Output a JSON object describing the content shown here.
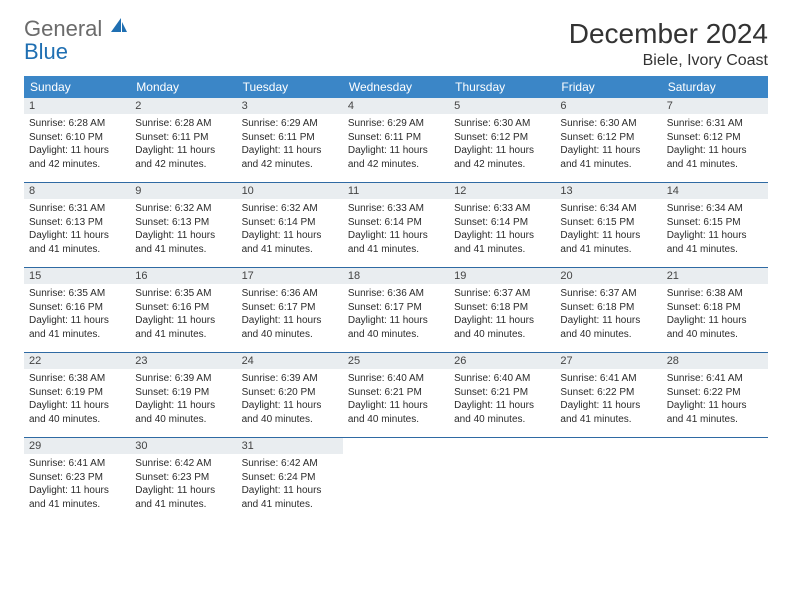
{
  "logo": {
    "word1": "General",
    "word2": "Blue"
  },
  "title": "December 2024",
  "location": "Biele, Ivory Coast",
  "colors": {
    "header_bg": "#3b86c7",
    "header_text": "#ffffff",
    "daynum_bg": "#e9edf0",
    "week_border": "#2f6aa3",
    "logo_gray": "#6b6b6b",
    "logo_blue": "#1f6fb2"
  },
  "weekdays": [
    "Sunday",
    "Monday",
    "Tuesday",
    "Wednesday",
    "Thursday",
    "Friday",
    "Saturday"
  ],
  "weeks": [
    [
      {
        "n": "1",
        "sunrise": "Sunrise: 6:28 AM",
        "sunset": "Sunset: 6:10 PM",
        "day1": "Daylight: 11 hours",
        "day2": "and 42 minutes."
      },
      {
        "n": "2",
        "sunrise": "Sunrise: 6:28 AM",
        "sunset": "Sunset: 6:11 PM",
        "day1": "Daylight: 11 hours",
        "day2": "and 42 minutes."
      },
      {
        "n": "3",
        "sunrise": "Sunrise: 6:29 AM",
        "sunset": "Sunset: 6:11 PM",
        "day1": "Daylight: 11 hours",
        "day2": "and 42 minutes."
      },
      {
        "n": "4",
        "sunrise": "Sunrise: 6:29 AM",
        "sunset": "Sunset: 6:11 PM",
        "day1": "Daylight: 11 hours",
        "day2": "and 42 minutes."
      },
      {
        "n": "5",
        "sunrise": "Sunrise: 6:30 AM",
        "sunset": "Sunset: 6:12 PM",
        "day1": "Daylight: 11 hours",
        "day2": "and 42 minutes."
      },
      {
        "n": "6",
        "sunrise": "Sunrise: 6:30 AM",
        "sunset": "Sunset: 6:12 PM",
        "day1": "Daylight: 11 hours",
        "day2": "and 41 minutes."
      },
      {
        "n": "7",
        "sunrise": "Sunrise: 6:31 AM",
        "sunset": "Sunset: 6:12 PM",
        "day1": "Daylight: 11 hours",
        "day2": "and 41 minutes."
      }
    ],
    [
      {
        "n": "8",
        "sunrise": "Sunrise: 6:31 AM",
        "sunset": "Sunset: 6:13 PM",
        "day1": "Daylight: 11 hours",
        "day2": "and 41 minutes."
      },
      {
        "n": "9",
        "sunrise": "Sunrise: 6:32 AM",
        "sunset": "Sunset: 6:13 PM",
        "day1": "Daylight: 11 hours",
        "day2": "and 41 minutes."
      },
      {
        "n": "10",
        "sunrise": "Sunrise: 6:32 AM",
        "sunset": "Sunset: 6:14 PM",
        "day1": "Daylight: 11 hours",
        "day2": "and 41 minutes."
      },
      {
        "n": "11",
        "sunrise": "Sunrise: 6:33 AM",
        "sunset": "Sunset: 6:14 PM",
        "day1": "Daylight: 11 hours",
        "day2": "and 41 minutes."
      },
      {
        "n": "12",
        "sunrise": "Sunrise: 6:33 AM",
        "sunset": "Sunset: 6:14 PM",
        "day1": "Daylight: 11 hours",
        "day2": "and 41 minutes."
      },
      {
        "n": "13",
        "sunrise": "Sunrise: 6:34 AM",
        "sunset": "Sunset: 6:15 PM",
        "day1": "Daylight: 11 hours",
        "day2": "and 41 minutes."
      },
      {
        "n": "14",
        "sunrise": "Sunrise: 6:34 AM",
        "sunset": "Sunset: 6:15 PM",
        "day1": "Daylight: 11 hours",
        "day2": "and 41 minutes."
      }
    ],
    [
      {
        "n": "15",
        "sunrise": "Sunrise: 6:35 AM",
        "sunset": "Sunset: 6:16 PM",
        "day1": "Daylight: 11 hours",
        "day2": "and 41 minutes."
      },
      {
        "n": "16",
        "sunrise": "Sunrise: 6:35 AM",
        "sunset": "Sunset: 6:16 PM",
        "day1": "Daylight: 11 hours",
        "day2": "and 41 minutes."
      },
      {
        "n": "17",
        "sunrise": "Sunrise: 6:36 AM",
        "sunset": "Sunset: 6:17 PM",
        "day1": "Daylight: 11 hours",
        "day2": "and 40 minutes."
      },
      {
        "n": "18",
        "sunrise": "Sunrise: 6:36 AM",
        "sunset": "Sunset: 6:17 PM",
        "day1": "Daylight: 11 hours",
        "day2": "and 40 minutes."
      },
      {
        "n": "19",
        "sunrise": "Sunrise: 6:37 AM",
        "sunset": "Sunset: 6:18 PM",
        "day1": "Daylight: 11 hours",
        "day2": "and 40 minutes."
      },
      {
        "n": "20",
        "sunrise": "Sunrise: 6:37 AM",
        "sunset": "Sunset: 6:18 PM",
        "day1": "Daylight: 11 hours",
        "day2": "and 40 minutes."
      },
      {
        "n": "21",
        "sunrise": "Sunrise: 6:38 AM",
        "sunset": "Sunset: 6:18 PM",
        "day1": "Daylight: 11 hours",
        "day2": "and 40 minutes."
      }
    ],
    [
      {
        "n": "22",
        "sunrise": "Sunrise: 6:38 AM",
        "sunset": "Sunset: 6:19 PM",
        "day1": "Daylight: 11 hours",
        "day2": "and 40 minutes."
      },
      {
        "n": "23",
        "sunrise": "Sunrise: 6:39 AM",
        "sunset": "Sunset: 6:19 PM",
        "day1": "Daylight: 11 hours",
        "day2": "and 40 minutes."
      },
      {
        "n": "24",
        "sunrise": "Sunrise: 6:39 AM",
        "sunset": "Sunset: 6:20 PM",
        "day1": "Daylight: 11 hours",
        "day2": "and 40 minutes."
      },
      {
        "n": "25",
        "sunrise": "Sunrise: 6:40 AM",
        "sunset": "Sunset: 6:21 PM",
        "day1": "Daylight: 11 hours",
        "day2": "and 40 minutes."
      },
      {
        "n": "26",
        "sunrise": "Sunrise: 6:40 AM",
        "sunset": "Sunset: 6:21 PM",
        "day1": "Daylight: 11 hours",
        "day2": "and 40 minutes."
      },
      {
        "n": "27",
        "sunrise": "Sunrise: 6:41 AM",
        "sunset": "Sunset: 6:22 PM",
        "day1": "Daylight: 11 hours",
        "day2": "and 41 minutes."
      },
      {
        "n": "28",
        "sunrise": "Sunrise: 6:41 AM",
        "sunset": "Sunset: 6:22 PM",
        "day1": "Daylight: 11 hours",
        "day2": "and 41 minutes."
      }
    ],
    [
      {
        "n": "29",
        "sunrise": "Sunrise: 6:41 AM",
        "sunset": "Sunset: 6:23 PM",
        "day1": "Daylight: 11 hours",
        "day2": "and 41 minutes."
      },
      {
        "n": "30",
        "sunrise": "Sunrise: 6:42 AM",
        "sunset": "Sunset: 6:23 PM",
        "day1": "Daylight: 11 hours",
        "day2": "and 41 minutes."
      },
      {
        "n": "31",
        "sunrise": "Sunrise: 6:42 AM",
        "sunset": "Sunset: 6:24 PM",
        "day1": "Daylight: 11 hours",
        "day2": "and 41 minutes."
      },
      {
        "empty": true
      },
      {
        "empty": true
      },
      {
        "empty": true
      },
      {
        "empty": true
      }
    ]
  ]
}
